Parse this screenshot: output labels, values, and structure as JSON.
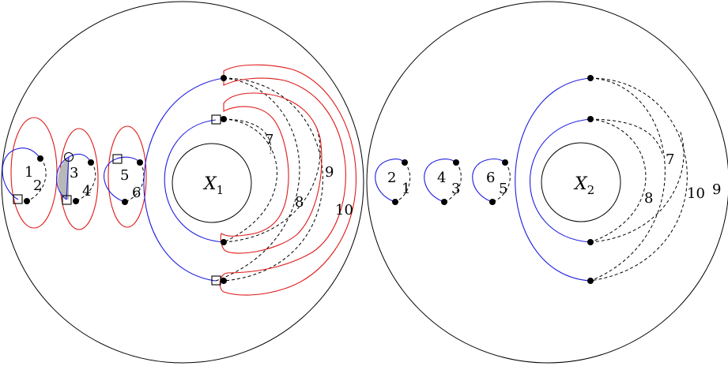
{
  "left_panel": {
    "center_label": "X",
    "center_sub": "1",
    "labels": [
      "1",
      "2",
      "3",
      "4",
      "5",
      "6",
      "7",
      "8",
      "9",
      "10"
    ]
  },
  "right_panel": {
    "center_label": "X",
    "center_sub": "2",
    "labels": [
      "2",
      "1",
      "4",
      "3",
      "6",
      "5",
      "7",
      "8",
      "10",
      "9"
    ]
  },
  "colors": {
    "blue_arcs": "#1f1fe0",
    "red_curves": "#e01a1a",
    "shaded_region": "#b8b8b8"
  }
}
